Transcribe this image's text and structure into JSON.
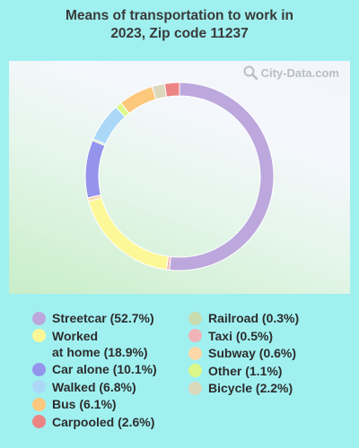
{
  "title_line1": "Means of transportation to work in",
  "title_line2": "2023, Zip code 11237",
  "watermark": "City-Data.com",
  "chart_data": {
    "type": "pie",
    "variant": "donut",
    "title": "Means of transportation to work in 2023, Zip code 11237",
    "start_angle_deg": 0,
    "direction": "clockwise",
    "legend_placement": "bottom",
    "slices": [
      {
        "label": "Streetcar",
        "value": 52.7,
        "legend": "Streetcar (52.7%)",
        "color": "#bca8dc"
      },
      {
        "label": "Taxi",
        "value": 0.5,
        "legend": "Taxi (0.5%)",
        "color": "#f0b4b8"
      },
      {
        "label": "Worked at home",
        "value": 18.9,
        "legend": "Worked\nat home (18.9%)",
        "color": "#fcf898"
      },
      {
        "label": "Subway",
        "value": 0.6,
        "legend": "Subway (0.6%)",
        "color": "#fcd8a8"
      },
      {
        "label": "Car alone",
        "value": 10.1,
        "legend": "Car alone (10.1%)",
        "color": "#9494ec"
      },
      {
        "label": "Railroad",
        "value": 0.3,
        "legend": "Railroad (0.3%)",
        "color": "#c8dcb0"
      },
      {
        "label": "Walked",
        "value": 6.8,
        "legend": "Walked (6.8%)",
        "color": "#acd8f8"
      },
      {
        "label": "Other",
        "value": 1.1,
        "legend": "Other (1.1%)",
        "color": "#dcf888"
      },
      {
        "label": "Bus",
        "value": 6.1,
        "legend": "Bus (6.1%)",
        "color": "#fcc87c"
      },
      {
        "label": "Bicycle",
        "value": 2.2,
        "legend": "Bicycle (2.2%)",
        "color": "#dcd8bc"
      },
      {
        "label": "Carpooled",
        "value": 2.6,
        "legend": "Carpooled (2.6%)",
        "color": "#ec8484"
      }
    ]
  },
  "legend": {
    "left": [
      {
        "text": "Streetcar (52.7%)",
        "color": "#bca8dc"
      },
      {
        "text": "Worked\nat home (18.9%)",
        "color": "#fcf898"
      },
      {
        "text": "Car alone (10.1%)",
        "color": "#9494ec"
      },
      {
        "text": "Walked (6.8%)",
        "color": "#acd8f8"
      },
      {
        "text": "Bus (6.1%)",
        "color": "#fcc87c"
      },
      {
        "text": "Carpooled (2.6%)",
        "color": "#ec8484"
      }
    ],
    "right": [
      {
        "text": "Railroad (0.3%)",
        "color": "#c8dcb0"
      },
      {
        "text": "Taxi (0.5%)",
        "color": "#f0b4b8"
      },
      {
        "text": "Subway (0.6%)",
        "color": "#fcd8a8"
      },
      {
        "text": "Other (1.1%)",
        "color": "#dcf888"
      },
      {
        "text": "Bicycle (2.2%)",
        "color": "#dcd8bc"
      }
    ]
  }
}
